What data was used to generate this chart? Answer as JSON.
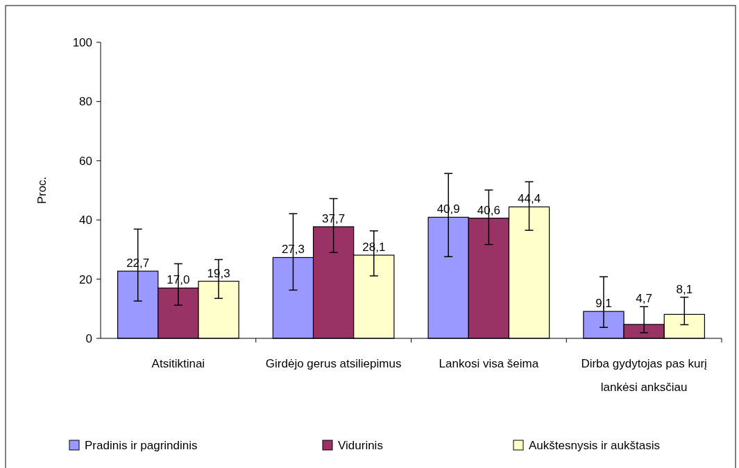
{
  "chart_data": {
    "type": "bar",
    "ylabel": "Proc.",
    "categories": [
      "Atsitiktinai",
      "Girdėjo gerus atsiliepimus",
      "Lankosi visa šeima",
      "Dirba gydytojas pas kurį lankėsi anksčiau"
    ],
    "series": [
      {
        "name": "Pradinis ir pagrindinis",
        "color": "#9999ff",
        "values": [
          22.7,
          27.3,
          40.9,
          9.1
        ],
        "value_labels": [
          "22,7",
          "27,3",
          "40,9",
          "9,1"
        ],
        "errors": [
          [
            12.6,
            36.9
          ],
          [
            16.3,
            42.1
          ],
          [
            27.6,
            55.7
          ],
          [
            3.7,
            20.8
          ]
        ]
      },
      {
        "name": "Vidurinis",
        "color": "#993366",
        "values": [
          17.0,
          37.7,
          40.6,
          4.7
        ],
        "value_labels": [
          "17,0",
          "37,7",
          "40,6",
          "4,7"
        ],
        "errors": [
          [
            11.2,
            25.2
          ],
          [
            29.0,
            47.2
          ],
          [
            31.7,
            50.1
          ],
          [
            1.9,
            10.7
          ]
        ]
      },
      {
        "name": "Aukštesnysis ir aukštasis",
        "color": "#ffffcc",
        "values": [
          19.3,
          28.1,
          44.4,
          8.1
        ],
        "value_labels": [
          "19,3",
          "28,1",
          "44,4",
          "8,1"
        ],
        "errors": [
          [
            13.5,
            26.6
          ],
          [
            21.1,
            36.3
          ],
          [
            36.5,
            52.9
          ],
          [
            4.6,
            13.9
          ]
        ]
      }
    ],
    "ylim": [
      0,
      100
    ],
    "yticks": [
      0,
      20,
      40,
      60,
      80,
      100
    ],
    "legend": "bottom",
    "grid": false
  }
}
